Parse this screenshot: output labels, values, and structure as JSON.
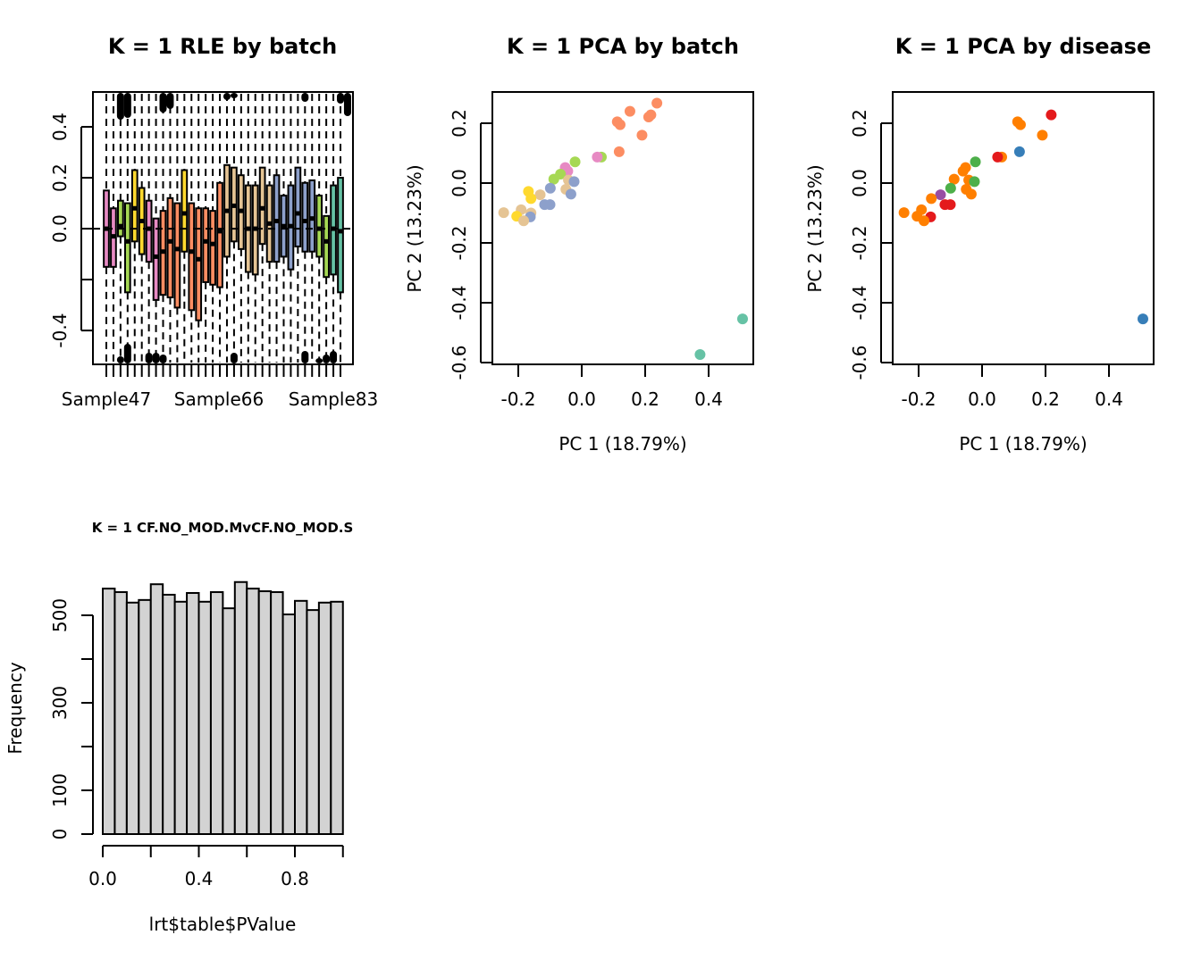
{
  "chart_data": [
    {
      "id": "rle",
      "type": "boxplot",
      "title": "K = 1 RLE by batch",
      "xlabel": "",
      "ylabel": "",
      "ylim": [
        -0.533,
        0.537
      ],
      "yticks": [
        0.4,
        0.2,
        0.0,
        -0.2,
        -0.4
      ],
      "ytick_labels": [
        "0.4",
        "0.2",
        "0.0",
        "",
        "-0.4"
      ],
      "xtick_labels": [
        "Sample47",
        "Sample66",
        "Sample83"
      ],
      "xtick_label_positions": [
        1,
        12,
        23
      ],
      "reference_line": 0.0,
      "whiskers": "dashed, extending to plot edges",
      "outliers": "black clusters near top and bottom edges",
      "boxes": [
        {
          "color": "#E78AC3",
          "q1": -0.15,
          "median": 0.0,
          "q3": 0.15
        },
        {
          "color": "#E78AC3",
          "q1": -0.15,
          "median": -0.03,
          "q3": 0.08
        },
        {
          "color": "#A6D854",
          "q1": -0.03,
          "median": 0.01,
          "q3": 0.11
        },
        {
          "color": "#A6D854",
          "q1": -0.25,
          "median": -0.05,
          "q3": 0.1
        },
        {
          "color": "#FFD92F",
          "q1": -0.05,
          "median": 0.08,
          "q3": 0.23
        },
        {
          "color": "#FFD92F",
          "q1": -0.1,
          "median": 0.03,
          "q3": 0.16
        },
        {
          "color": "#E78AC3",
          "q1": -0.13,
          "median": 0.0,
          "q3": 0.11
        },
        {
          "color": "#E78AC3",
          "q1": -0.28,
          "median": -0.11,
          "q3": 0.04
        },
        {
          "color": "#FC8D62",
          "q1": -0.26,
          "median": -0.09,
          "q3": 0.07
        },
        {
          "color": "#FC8D62",
          "q1": -0.27,
          "median": -0.05,
          "q3": 0.12
        },
        {
          "color": "#FC8D62",
          "q1": -0.31,
          "median": -0.08,
          "q3": 0.1
        },
        {
          "color": "#FFD92F",
          "q1": -0.09,
          "median": 0.06,
          "q3": 0.23
        },
        {
          "color": "#FC8D62",
          "q1": -0.32,
          "median": -0.09,
          "q3": 0.1
        },
        {
          "color": "#FC8D62",
          "q1": -0.36,
          "median": -0.12,
          "q3": 0.08
        },
        {
          "color": "#FC8D62",
          "q1": -0.21,
          "median": -0.05,
          "q3": 0.08
        },
        {
          "color": "#FC8D62",
          "q1": -0.22,
          "median": -0.06,
          "q3": 0.07
        },
        {
          "color": "#FC8D62",
          "q1": -0.23,
          "median": -0.01,
          "q3": 0.18
        },
        {
          "color": "#E5C494",
          "q1": -0.11,
          "median": 0.07,
          "q3": 0.25
        },
        {
          "color": "#E5C494",
          "q1": -0.05,
          "median": 0.09,
          "q3": 0.24
        },
        {
          "color": "#E5C494",
          "q1": -0.08,
          "median": 0.07,
          "q3": 0.21
        },
        {
          "color": "#E5C494",
          "q1": -0.17,
          "median": 0.0,
          "q3": 0.17
        },
        {
          "color": "#E5C494",
          "q1": -0.18,
          "median": 0.0,
          "q3": 0.17
        },
        {
          "color": "#E5C494",
          "q1": -0.06,
          "median": 0.08,
          "q3": 0.24
        },
        {
          "color": "#E5C494",
          "q1": -0.13,
          "median": 0.02,
          "q3": 0.17
        },
        {
          "color": "#8DA0CB",
          "q1": -0.13,
          "median": 0.03,
          "q3": 0.21
        },
        {
          "color": "#8DA0CB",
          "q1": -0.11,
          "median": 0.01,
          "q3": 0.13
        },
        {
          "color": "#8DA0CB",
          "q1": -0.16,
          "median": 0.01,
          "q3": 0.17
        },
        {
          "color": "#8DA0CB",
          "q1": -0.07,
          "median": 0.06,
          "q3": 0.24
        },
        {
          "color": "#8DA0CB",
          "q1": -0.09,
          "median": 0.03,
          "q3": 0.18
        },
        {
          "color": "#8DA0CB",
          "q1": -0.09,
          "median": 0.04,
          "q3": 0.19
        },
        {
          "color": "#A6D854",
          "q1": -0.11,
          "median": 0.0,
          "q3": 0.13
        },
        {
          "color": "#A6D854",
          "q1": -0.19,
          "median": -0.05,
          "q3": 0.05
        },
        {
          "color": "#66C2A5",
          "q1": -0.18,
          "median": 0.0,
          "q3": 0.17
        },
        {
          "color": "#66C2A5",
          "q1": -0.25,
          "median": -0.01,
          "q3": 0.2
        }
      ]
    },
    {
      "id": "pca-batch",
      "type": "scatter",
      "title": "K = 1 PCA by batch",
      "xlabel": "PC 1 (18.79%)",
      "ylabel": "PC 2 (13.23%)",
      "xlim": [
        -0.28,
        0.54
      ],
      "ylim": [
        -0.605,
        0.305
      ],
      "xticks": [
        -0.2,
        0.0,
        0.2,
        0.4
      ],
      "xtick_labels": [
        "-0.2",
        "0.0",
        "0.2",
        "0.4"
      ],
      "yticks": [
        0.2,
        0.0,
        -0.2,
        -0.4,
        -0.6
      ],
      "ytick_labels": [
        "0.2",
        "0.0",
        "-0.2",
        "-0.4",
        "-0.6"
      ],
      "points": [
        {
          "x": 0.237,
          "y": 0.267,
          "color": "#FC8D62"
        },
        {
          "x": 0.152,
          "y": 0.24,
          "color": "#FC8D62"
        },
        {
          "x": 0.218,
          "y": 0.228,
          "color": "#FC8D62"
        },
        {
          "x": 0.211,
          "y": 0.221,
          "color": "#FC8D62"
        },
        {
          "x": 0.112,
          "y": 0.205,
          "color": "#FC8D62"
        },
        {
          "x": 0.121,
          "y": 0.195,
          "color": "#FC8D62"
        },
        {
          "x": 0.19,
          "y": 0.16,
          "color": "#FC8D62"
        },
        {
          "x": 0.118,
          "y": 0.105,
          "color": "#FC8D62"
        },
        {
          "x": 0.062,
          "y": 0.087,
          "color": "#A6D854"
        },
        {
          "x": 0.049,
          "y": 0.087,
          "color": "#E78AC3"
        },
        {
          "x": -0.021,
          "y": 0.071,
          "color": "#A6D854"
        },
        {
          "x": -0.052,
          "y": 0.052,
          "color": "#E78AC3"
        },
        {
          "x": -0.044,
          "y": 0.04,
          "color": "#E78AC3"
        },
        {
          "x": -0.067,
          "y": 0.03,
          "color": "#A6D854"
        },
        {
          "x": -0.088,
          "y": 0.013,
          "color": "#A6D854"
        },
        {
          "x": -0.042,
          "y": 0.01,
          "color": "#E5C494"
        },
        {
          "x": -0.024,
          "y": 0.005,
          "color": "#8DA0CB"
        },
        {
          "x": -0.099,
          "y": -0.017,
          "color": "#8DA0CB"
        },
        {
          "x": -0.05,
          "y": -0.021,
          "color": "#E5C494"
        },
        {
          "x": -0.034,
          "y": -0.037,
          "color": "#8DA0CB"
        },
        {
          "x": -0.131,
          "y": -0.039,
          "color": "#E5C494"
        },
        {
          "x": -0.168,
          "y": -0.028,
          "color": "#FFD92F"
        },
        {
          "x": -0.16,
          "y": -0.052,
          "color": "#FFD92F"
        },
        {
          "x": -0.117,
          "y": -0.072,
          "color": "#8DA0CB"
        },
        {
          "x": -0.1,
          "y": -0.072,
          "color": "#8DA0CB"
        },
        {
          "x": -0.191,
          "y": -0.089,
          "color": "#E5C494"
        },
        {
          "x": -0.16,
          "y": -0.1,
          "color": "#E5C494"
        },
        {
          "x": -0.246,
          "y": -0.099,
          "color": "#E5C494"
        },
        {
          "x": -0.205,
          "y": -0.111,
          "color": "#FFD92F"
        },
        {
          "x": -0.162,
          "y": -0.113,
          "color": "#8DA0CB"
        },
        {
          "x": -0.183,
          "y": -0.126,
          "color": "#E5C494"
        },
        {
          "x": 0.507,
          "y": -0.454,
          "color": "#66C2A5"
        },
        {
          "x": 0.373,
          "y": -0.573,
          "color": "#66C2A5"
        }
      ]
    },
    {
      "id": "pca-disease",
      "type": "scatter",
      "title": "K = 1 PCA by disease",
      "xlabel": "PC 1 (18.79%)",
      "ylabel": "PC 2 (13.23%)",
      "xlim": [
        -0.28,
        0.54
      ],
      "ylim": [
        -0.605,
        0.305
      ],
      "xticks": [
        -0.2,
        0.0,
        0.2,
        0.4
      ],
      "xtick_labels": [
        "-0.2",
        "0.0",
        "0.2",
        "0.4"
      ],
      "yticks": [
        0.2,
        0.0,
        -0.2,
        -0.4,
        -0.6
      ],
      "ytick_labels": [
        "0.2",
        "0.0",
        "-0.2",
        "-0.4",
        "-0.6"
      ],
      "points": [
        {
          "x": 0.218,
          "y": 0.228,
          "color": "#E41A1C"
        },
        {
          "x": 0.112,
          "y": 0.205,
          "color": "#FF7F00"
        },
        {
          "x": 0.121,
          "y": 0.195,
          "color": "#FF7F00"
        },
        {
          "x": 0.19,
          "y": 0.16,
          "color": "#FF7F00"
        },
        {
          "x": 0.118,
          "y": 0.105,
          "color": "#377EB8"
        },
        {
          "x": 0.062,
          "y": 0.087,
          "color": "#FF7F00"
        },
        {
          "x": 0.049,
          "y": 0.087,
          "color": "#E41A1C"
        },
        {
          "x": -0.021,
          "y": 0.071,
          "color": "#4DAF4A"
        },
        {
          "x": -0.052,
          "y": 0.052,
          "color": "#FF7F00"
        },
        {
          "x": -0.06,
          "y": 0.04,
          "color": "#FF7F00"
        },
        {
          "x": -0.088,
          "y": 0.013,
          "color": "#FF7F00"
        },
        {
          "x": -0.042,
          "y": 0.01,
          "color": "#FF7F00"
        },
        {
          "x": -0.024,
          "y": 0.005,
          "color": "#4DAF4A"
        },
        {
          "x": -0.099,
          "y": -0.017,
          "color": "#4DAF4A"
        },
        {
          "x": -0.05,
          "y": -0.021,
          "color": "#FF7F00"
        },
        {
          "x": -0.034,
          "y": -0.037,
          "color": "#FF7F00"
        },
        {
          "x": -0.131,
          "y": -0.039,
          "color": "#984EA3"
        },
        {
          "x": -0.16,
          "y": -0.052,
          "color": "#FF7F00"
        },
        {
          "x": -0.117,
          "y": -0.072,
          "color": "#E41A1C"
        },
        {
          "x": -0.1,
          "y": -0.072,
          "color": "#E41A1C"
        },
        {
          "x": -0.191,
          "y": -0.089,
          "color": "#FF7F00"
        },
        {
          "x": -0.246,
          "y": -0.099,
          "color": "#FF7F00"
        },
        {
          "x": -0.205,
          "y": -0.111,
          "color": "#FF7F00"
        },
        {
          "x": -0.162,
          "y": -0.113,
          "color": "#E41A1C"
        },
        {
          "x": -0.183,
          "y": -0.126,
          "color": "#FF7F00"
        },
        {
          "x": 0.507,
          "y": -0.454,
          "color": "#377EB8"
        }
      ]
    },
    {
      "id": "pvalue-hist",
      "type": "bar",
      "title": "K = 1 CF.NO_MOD.MvCF.NO_MOD.S",
      "xlabel": "lrt$table$PValue",
      "ylabel": "Frequency",
      "xlim": [
        0,
        1
      ],
      "ylim": [
        0,
        580
      ],
      "bin_edges": [
        0,
        0.05,
        0.1,
        0.15,
        0.2,
        0.25,
        0.3,
        0.35,
        0.4,
        0.45,
        0.5,
        0.55,
        0.6,
        0.65,
        0.7,
        0.75,
        0.8,
        0.85,
        0.9,
        0.95,
        1.0
      ],
      "values": [
        561,
        553,
        529,
        535,
        571,
        547,
        531,
        551,
        531,
        553,
        516,
        576,
        561,
        555,
        553,
        502,
        533,
        512,
        529,
        531
      ],
      "bar_fill": "#D3D3D3",
      "xticks": [
        0.0,
        0.2,
        0.4,
        0.6,
        0.8,
        1.0
      ],
      "xtick_labels": [
        "0.0",
        "",
        "0.4",
        "",
        "0.8",
        ""
      ],
      "yticks": [
        0,
        100,
        200,
        300,
        400,
        500
      ],
      "ytick_labels": [
        "0",
        "100",
        "",
        "300",
        "",
        "500"
      ]
    }
  ]
}
